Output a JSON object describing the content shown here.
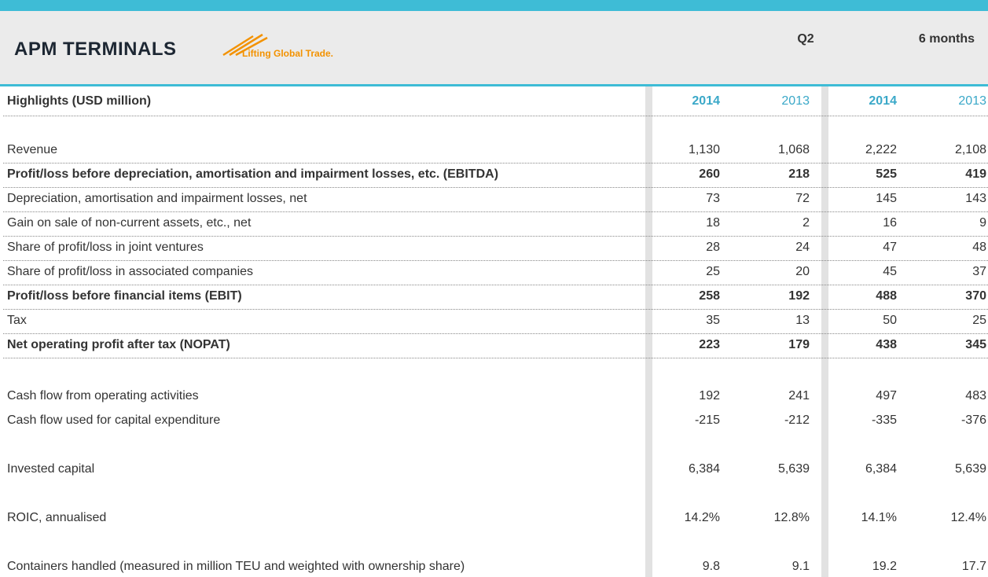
{
  "header": {
    "logo": "APM TERMINALS",
    "tagline": "Lifting Global Trade.",
    "groups": [
      "Q2",
      "6 months"
    ]
  },
  "table": {
    "title": "Highlights (USD million)",
    "years": [
      "2014",
      "2013",
      "2014",
      "2013"
    ],
    "sections": [
      {
        "dividers": true,
        "rows": [
          {
            "label": "Revenue",
            "bold": false,
            "values": [
              "1,130",
              "1,068",
              "2,222",
              "2,108"
            ]
          },
          {
            "label": "Profit/loss before depreciation, amortisation and impairment losses, etc. (EBITDA)",
            "bold": true,
            "values": [
              "260",
              "218",
              "525",
              "419"
            ]
          },
          {
            "label": "Depreciation, amortisation and impairment losses, net",
            "bold": false,
            "values": [
              "73",
              "72",
              "145",
              "143"
            ]
          },
          {
            "label": "Gain on sale of non-current assets, etc., net",
            "bold": false,
            "values": [
              "18",
              "2",
              "16",
              "9"
            ]
          },
          {
            "label": "Share of profit/loss in joint ventures",
            "bold": false,
            "values": [
              "28",
              "24",
              "47",
              "48"
            ]
          },
          {
            "label": "Share of profit/loss in associated companies",
            "bold": false,
            "values": [
              "25",
              "20",
              "45",
              "37"
            ]
          },
          {
            "label": "Profit/loss before financial items (EBIT)",
            "bold": true,
            "values": [
              "258",
              "192",
              "488",
              "370"
            ]
          },
          {
            "label": "Tax",
            "bold": false,
            "values": [
              "35",
              "13",
              "50",
              "25"
            ]
          },
          {
            "label": "Net operating profit after tax (NOPAT)",
            "bold": true,
            "values": [
              "223",
              "179",
              "438",
              "345"
            ]
          }
        ]
      },
      {
        "dividers": false,
        "rows": [
          {
            "label": "Cash flow from operating activities",
            "bold": false,
            "values": [
              "192",
              "241",
              "497",
              "483"
            ]
          },
          {
            "label": "Cash flow used for capital expenditure",
            "bold": false,
            "values": [
              "-215",
              "-212",
              "-335",
              "-376"
            ]
          }
        ]
      },
      {
        "dividers": false,
        "rows": [
          {
            "label": "Invested capital",
            "bold": false,
            "values": [
              "6,384",
              "5,639",
              "6,384",
              "5,639"
            ]
          }
        ]
      },
      {
        "dividers": false,
        "rows": [
          {
            "label": "ROIC, annualised",
            "bold": false,
            "values": [
              "14.2%",
              "12.8%",
              "14.1%",
              "12.4%"
            ]
          }
        ]
      },
      {
        "dividers": false,
        "rows": [
          {
            "label": "Containers handled (measured in million TEU and weighted with ownership share)",
            "bold": false,
            "values": [
              "9.8",
              "9.1",
              "19.2",
              "17.7"
            ]
          }
        ]
      }
    ]
  }
}
